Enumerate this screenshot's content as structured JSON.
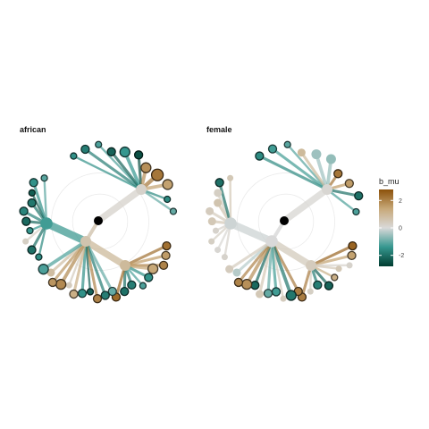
{
  "chart_data": [
    {
      "type": "tree",
      "title": "african",
      "root": {
        "b_mu": null
      },
      "branches": [
        {
          "b_mu": 0.2,
          "size": 5,
          "children": [
            {
              "b_mu": -1.5,
              "size": 2
            },
            {
              "b_mu": -1.8,
              "size": 3
            },
            {
              "b_mu": -1.2,
              "size": 2
            },
            {
              "b_mu": -2.2,
              "size": 3
            },
            {
              "b_mu": -1.4,
              "size": 4
            },
            {
              "b_mu": -2.5,
              "size": 3
            },
            {
              "b_mu": 1.8,
              "size": 4
            },
            {
              "b_mu": 2.2,
              "size": 5
            },
            {
              "b_mu": 1.5,
              "size": 4
            },
            {
              "b_mu": -1.6,
              "size": 2
            },
            {
              "b_mu": -1.0,
              "size": 2
            }
          ]
        },
        {
          "b_mu": 0.9,
          "size": 5,
          "children": [
            {
              "b_mu": 2.3,
              "size": 3
            },
            {
              "b_mu": 1.6,
              "size": 3
            },
            {
              "b_mu": 2.0,
              "size": 3
            },
            {
              "b_mu": 1.4,
              "size": 4
            },
            {
              "b_mu": -1.5,
              "size": 3
            },
            {
              "b_mu": -1.2,
              "size": 2
            },
            {
              "b_mu": -1.8,
              "size": 3
            },
            {
              "b_mu": -2.0,
              "size": 3
            },
            {
              "b_mu": 2.4,
              "size": 3
            }
          ]
        },
        {
          "b_mu": -1.3,
          "size": 6,
          "children": [
            {
              "b_mu": -1.6,
              "size": 2
            },
            {
              "b_mu": -2.0,
              "size": 3
            },
            {
              "b_mu": 0.3,
              "size": 2
            },
            {
              "b_mu": -1.4,
              "size": 2
            },
            {
              "b_mu": -2.1,
              "size": 3
            },
            {
              "b_mu": -1.7,
              "size": 3
            },
            {
              "b_mu": -1.9,
              "size": 3
            },
            {
              "b_mu": -2.3,
              "size": 2
            },
            {
              "b_mu": -1.5,
              "size": 3
            },
            {
              "b_mu": -1.1,
              "size": 2
            }
          ]
        },
        {
          "b_mu": 0.6,
          "size": 5,
          "children": [
            {
              "b_mu": -1.0,
              "size": 3
            },
            {
              "b_mu": -1.8,
              "size": 3
            },
            {
              "b_mu": 2.0,
              "size": 3
            },
            {
              "b_mu": -2.2,
              "size": 2
            },
            {
              "b_mu": -1.5,
              "size": 3
            },
            {
              "b_mu": 1.2,
              "size": 3
            },
            {
              "b_mu": 0.4,
              "size": 2
            },
            {
              "b_mu": 1.9,
              "size": 4
            },
            {
              "b_mu": 1.7,
              "size": 3
            },
            {
              "b_mu": 0.8,
              "size": 3
            },
            {
              "b_mu": -1.2,
              "size": 4
            }
          ]
        }
      ]
    },
    {
      "type": "tree",
      "title": "female",
      "root": {
        "b_mu": null
      },
      "branches": [
        {
          "b_mu": 0.1,
          "size": 5,
          "children": [
            {
              "b_mu": -1.6,
              "size": 3
            },
            {
              "b_mu": -1.3,
              "size": 3
            },
            {
              "b_mu": -1.1,
              "size": 2
            },
            {
              "b_mu": 0.9,
              "size": 3
            },
            {
              "b_mu": -0.5,
              "size": 4
            },
            {
              "b_mu": -0.6,
              "size": 4
            },
            {
              "b_mu": 2.2,
              "size": 3
            },
            {
              "b_mu": 1.6,
              "size": 3
            },
            {
              "b_mu": -2.0,
              "size": 3
            },
            {
              "b_mu": -1.2,
              "size": 2
            }
          ]
        },
        {
          "b_mu": 0.4,
          "size": 5,
          "children": [
            {
              "b_mu": 2.5,
              "size": 3
            },
            {
              "b_mu": 1.5,
              "size": 3
            },
            {
              "b_mu": 0.2,
              "size": 2
            },
            {
              "b_mu": 0.5,
              "size": 2
            },
            {
              "b_mu": 1.2,
              "size": 2
            },
            {
              "b_mu": -2.2,
              "size": 3
            },
            {
              "b_mu": -1.8,
              "size": 3
            },
            {
              "b_mu": 0.3,
              "size": 2
            },
            {
              "b_mu": 2.1,
              "size": 3
            }
          ]
        },
        {
          "b_mu": -0.1,
          "size": 6,
          "children": [
            {
              "b_mu": 0.2,
              "size": 2
            },
            {
              "b_mu": 0.1,
              "size": 2
            },
            {
              "b_mu": 0.3,
              "size": 2
            },
            {
              "b_mu": 0.2,
              "size": 2
            },
            {
              "b_mu": 0.5,
              "size": 3
            },
            {
              "b_mu": 0.4,
              "size": 3
            },
            {
              "b_mu": 0.6,
              "size": 3
            },
            {
              "b_mu": 0.3,
              "size": 3
            },
            {
              "b_mu": -2.0,
              "size": 3
            },
            {
              "b_mu": 0.5,
              "size": 2
            }
          ]
        },
        {
          "b_mu": 0.0,
          "size": 6,
          "children": [
            {
              "b_mu": 2.1,
              "size": 3
            },
            {
              "b_mu": -1.9,
              "size": 4
            },
            {
              "b_mu": 0.4,
              "size": 2
            },
            {
              "b_mu": -1.3,
              "size": 3
            },
            {
              "b_mu": -1.0,
              "size": 3
            },
            {
              "b_mu": 0.5,
              "size": 3
            },
            {
              "b_mu": -2.1,
              "size": 3
            },
            {
              "b_mu": 1.8,
              "size": 4
            },
            {
              "b_mu": 2.0,
              "size": 3
            },
            {
              "b_mu": -0.3,
              "size": 3
            },
            {
              "b_mu": 0.4,
              "size": 3
            }
          ]
        }
      ]
    }
  ],
  "legend": {
    "title": "b_mu",
    "ticks": [
      2,
      0,
      -2
    ],
    "tick_labels": [
      "2",
      "0",
      "-2"
    ],
    "range": [
      -2.8,
      2.8
    ],
    "colors": {
      "low": "#003c30",
      "mid_low": "#35978f",
      "mid": "#d9d9d9",
      "mid_high": "#c7a878",
      "high": "#8c510a"
    }
  },
  "colors": {
    "root": "#000000",
    "guide_circle": "#ebebeb"
  }
}
